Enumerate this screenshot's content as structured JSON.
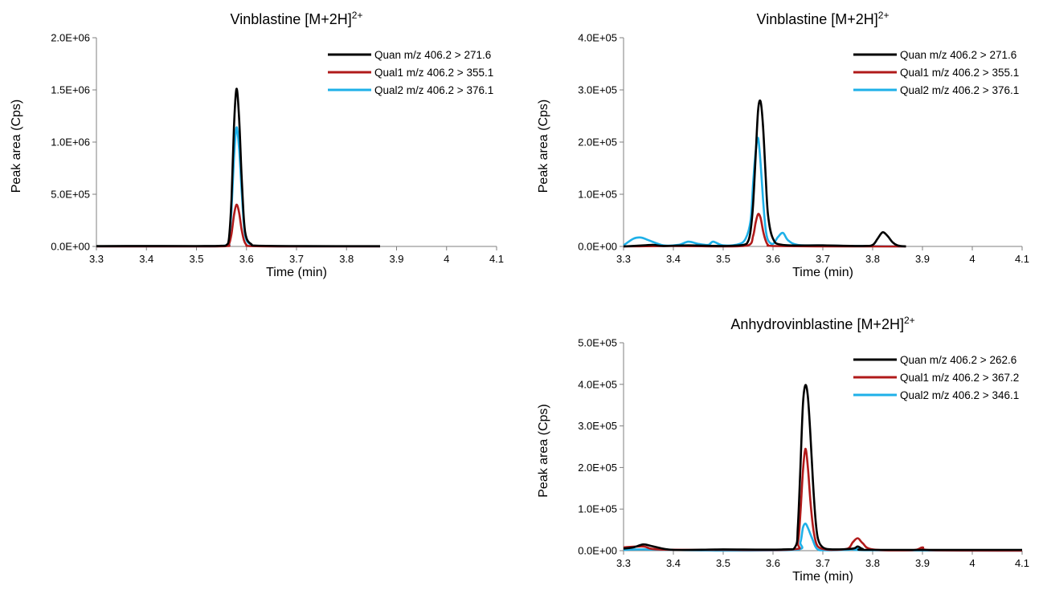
{
  "chart_data": [
    {
      "type": "line",
      "title_main": "Vinblastine [M+2H]",
      "title_sup": "2+",
      "xlabel": "Time (min)",
      "ylabel": "Peak area (Cps)",
      "xlim": [
        3.3,
        4.1
      ],
      "ylim": [
        0,
        2000000
      ],
      "xticks": [
        "3.3",
        "3.4",
        "3.5",
        "3.6",
        "3.7",
        "3.8",
        "3.9",
        "4",
        "4.1"
      ],
      "yticks": [
        "0.0E+00",
        "5.0E+05",
        "1.0E+06",
        "1.5E+06",
        "2.0E+06"
      ],
      "legend_position": "top-right",
      "series": [
        {
          "name": "Quan m/z 406.2 > 271.6",
          "color": "#000000",
          "x": [
            3.3,
            3.36,
            3.5,
            3.55,
            3.56,
            3.565,
            3.57,
            3.575,
            3.58,
            3.585,
            3.59,
            3.595,
            3.6,
            3.61,
            3.62,
            3.7,
            3.867
          ],
          "y": [
            3000,
            5000,
            4000,
            6000,
            15000,
            80000,
            450000,
            1150000,
            1510000,
            1250000,
            700000,
            250000,
            80000,
            20000,
            8000,
            4000,
            2000
          ]
        },
        {
          "name": "Qual1 m/z 406.2 > 355.1",
          "color": "#b01a1a",
          "x": [
            3.3,
            3.5,
            3.56,
            3.565,
            3.57,
            3.575,
            3.58,
            3.585,
            3.59,
            3.595,
            3.6,
            3.61,
            3.7,
            3.867
          ],
          "y": [
            0,
            0,
            3000,
            20000,
            120000,
            300000,
            400000,
            330000,
            170000,
            60000,
            15000,
            3000,
            0,
            0
          ]
        },
        {
          "name": "Qual2 m/z 406.2 > 376.1",
          "color": "#1eb0e8",
          "x": [
            3.3,
            3.5,
            3.56,
            3.565,
            3.57,
            3.575,
            3.58,
            3.585,
            3.59,
            3.595,
            3.6,
            3.61,
            3.62,
            3.7,
            3.867
          ],
          "y": [
            0,
            0,
            10000,
            60000,
            350000,
            850000,
            1140000,
            950000,
            560000,
            200000,
            60000,
            15000,
            5000,
            0,
            0
          ]
        }
      ]
    },
    {
      "type": "line",
      "title_main": "Vinblastine [M+2H]",
      "title_sup": "2+",
      "xlabel": "Time (min)",
      "ylabel": "Peak area (Cps)",
      "xlim": [
        3.3,
        4.1
      ],
      "ylim": [
        0,
        400000
      ],
      "xticks": [
        "3.3",
        "3.4",
        "3.5",
        "3.6",
        "3.7",
        "3.8",
        "3.9",
        "4",
        "4.1"
      ],
      "yticks": [
        "0.0E+00",
        "1.0E+05",
        "2.0E+05",
        "3.0E+05",
        "4.0E+05"
      ],
      "legend_position": "top-right",
      "series": [
        {
          "name": "Quan m/z 406.2 > 271.6",
          "color": "#000000",
          "x": [
            3.3,
            3.34,
            3.36,
            3.38,
            3.43,
            3.5,
            3.54,
            3.55,
            3.555,
            3.56,
            3.565,
            3.57,
            3.575,
            3.58,
            3.585,
            3.59,
            3.6,
            3.62,
            3.7,
            3.78,
            3.8,
            3.81,
            3.82,
            3.83,
            3.84,
            3.85,
            3.867
          ],
          "y": [
            0,
            2000,
            3000,
            1000,
            2000,
            1000,
            3000,
            10000,
            30000,
            80000,
            170000,
            260000,
            278000,
            230000,
            140000,
            60000,
            15000,
            3000,
            2000,
            1000,
            3000,
            15000,
            27000,
            20000,
            8000,
            2000,
            0
          ]
        },
        {
          "name": "Qual1 m/z 406.2 > 355.1",
          "color": "#b01a1a",
          "x": [
            3.3,
            3.4,
            3.5,
            3.55,
            3.56,
            3.565,
            3.57,
            3.575,
            3.58,
            3.585,
            3.59,
            3.6,
            3.7,
            3.867
          ],
          "y": [
            0,
            1000,
            0,
            2000,
            20000,
            45000,
            62000,
            55000,
            30000,
            12000,
            3000,
            1000,
            0,
            0
          ]
        },
        {
          "name": "Qual2 m/z 406.2 > 376.1",
          "color": "#1eb0e8",
          "x": [
            3.3,
            3.32,
            3.335,
            3.35,
            3.38,
            3.41,
            3.43,
            3.45,
            3.47,
            3.48,
            3.5,
            3.53,
            3.545,
            3.555,
            3.56,
            3.565,
            3.57,
            3.575,
            3.58,
            3.585,
            3.59,
            3.6,
            3.61,
            3.62,
            3.63,
            3.65,
            3.7,
            3.75,
            3.867
          ],
          "y": [
            2000,
            15000,
            17000,
            12000,
            2000,
            3000,
            9000,
            5000,
            3000,
            9000,
            2000,
            4000,
            15000,
            50000,
            120000,
            180000,
            208000,
            160000,
            90000,
            35000,
            12000,
            5000,
            18000,
            26000,
            12000,
            3000,
            2000,
            1000,
            0
          ]
        }
      ]
    },
    {
      "type": "line",
      "title_main": "Anhydrovinblastine [M+2H]",
      "title_sup": "2+",
      "xlabel": "Time (min)",
      "ylabel": "Peak area (Cps)",
      "xlim": [
        3.3,
        4.1
      ],
      "ylim": [
        0,
        500000
      ],
      "xticks": [
        "3.3",
        "3.4",
        "3.5",
        "3.6",
        "3.7",
        "3.8",
        "3.9",
        "4",
        "4.1"
      ],
      "yticks": [
        "0.0E+00",
        "1.0E+05",
        "2.0E+05",
        "3.0E+05",
        "4.0E+05",
        "5.0E+05"
      ],
      "legend_position": "top-right",
      "series": [
        {
          "name": "Quan m/z 406.2 > 262.6",
          "color": "#000000",
          "x": [
            3.3,
            3.32,
            3.34,
            3.36,
            3.4,
            3.5,
            3.62,
            3.645,
            3.65,
            3.655,
            3.66,
            3.665,
            3.67,
            3.675,
            3.68,
            3.685,
            3.69,
            3.7,
            3.72,
            3.76,
            3.77,
            3.78,
            3.8,
            4.1
          ],
          "y": [
            5000,
            8000,
            15000,
            10000,
            2000,
            3000,
            3000,
            10000,
            60000,
            200000,
            350000,
            398000,
            370000,
            280000,
            170000,
            80000,
            30000,
            8000,
            3000,
            5000,
            10000,
            4000,
            2000,
            2000
          ]
        },
        {
          "name": "Qual1 m/z 406.2 > 367.2",
          "color": "#b01a1a",
          "x": [
            3.3,
            3.34,
            3.37,
            3.5,
            3.64,
            3.65,
            3.655,
            3.66,
            3.665,
            3.67,
            3.675,
            3.68,
            3.685,
            3.69,
            3.7,
            3.72,
            3.75,
            3.76,
            3.77,
            3.78,
            3.8,
            3.88,
            3.9,
            3.92,
            4.1
          ],
          "y": [
            8000,
            10000,
            3000,
            2000,
            3000,
            20000,
            90000,
            190000,
            245000,
            200000,
            120000,
            60000,
            25000,
            10000,
            4000,
            2000,
            5000,
            20000,
            30000,
            18000,
            3000,
            1000,
            8000,
            1000,
            0
          ]
        },
        {
          "name": "Qual2 m/z 406.2 > 346.1",
          "color": "#1eb0e8",
          "x": [
            3.3,
            3.34,
            3.5,
            3.645,
            3.655,
            3.66,
            3.665,
            3.67,
            3.675,
            3.68,
            3.685,
            3.69,
            3.7,
            3.75,
            3.77,
            3.79,
            4.1
          ],
          "y": [
            2000,
            3000,
            0,
            2000,
            20000,
            55000,
            65000,
            55000,
            40000,
            25000,
            10000,
            3000,
            1000,
            2000,
            5000,
            1000,
            0
          ]
        }
      ]
    }
  ]
}
